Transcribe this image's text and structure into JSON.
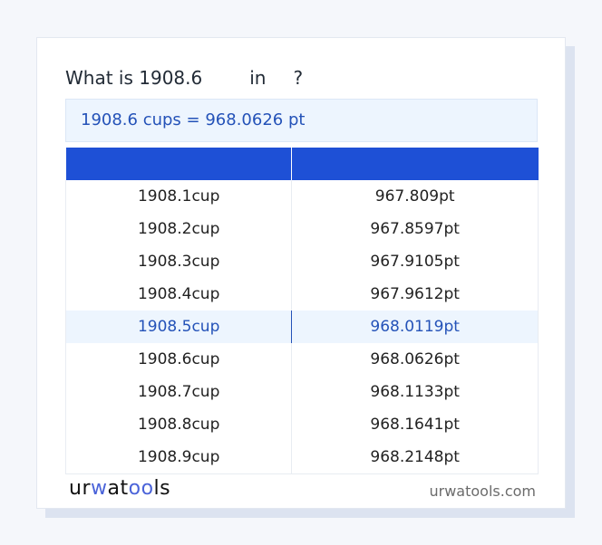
{
  "title": {
    "prefix": "What is 1908.6",
    "in": "in",
    "suffix": "?"
  },
  "result": "1908.6 cups = 968.0626 pt",
  "table": {
    "headers": [
      "",
      ""
    ],
    "rows": [
      [
        "1908.1cup",
        "967.809pt"
      ],
      [
        "1908.2cup",
        "967.8597pt"
      ],
      [
        "1908.3cup",
        "967.9105pt"
      ],
      [
        "1908.4cup",
        "967.9612pt"
      ],
      [
        "1908.5cup",
        "968.0119pt"
      ],
      [
        "1908.6cup",
        "968.0626pt"
      ],
      [
        "1908.7cup",
        "968.1133pt"
      ],
      [
        "1908.8cup",
        "968.1641pt"
      ],
      [
        "1908.9cup",
        "968.2148pt"
      ]
    ],
    "highlighted_row": 4
  },
  "footer": {
    "logo": "urwatools",
    "site": "urwatools.com"
  },
  "colors": {
    "accent": "#1e50d6",
    "highlight_bg": "#edf5fe",
    "highlight_text": "#2452b8"
  }
}
